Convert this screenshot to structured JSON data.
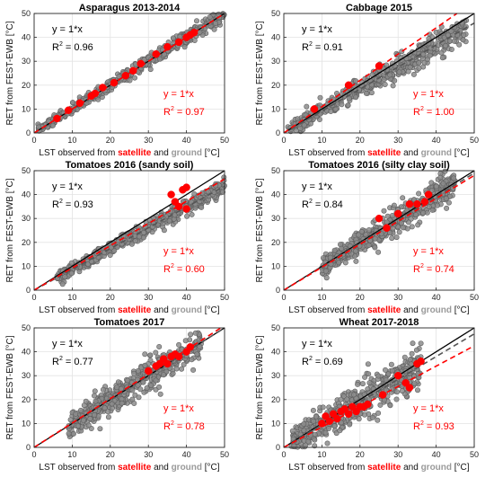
{
  "figure": {
    "ylabel": "RET from FEST-EWB [°C]",
    "xlabel_parts": {
      "prefix": "LST observed from ",
      "satellite": "satellite",
      "and": " and ",
      "ground": "ground",
      "suffix": " [°C]"
    },
    "ticks": [
      "0",
      "10",
      "20",
      "30",
      "40",
      "50"
    ],
    "colors": {
      "satellite": "#ff0000",
      "ground": "#9a9a9a",
      "ground_fill": "#8c8c8c",
      "ground_edge": "#5e5e5e",
      "identity_line": "#000000",
      "ground_fit": "#555555",
      "satellite_fit": "#ff0000"
    }
  },
  "chart_data": [
    {
      "type": "scatter",
      "title": "Asparagus 2013-2014",
      "xlim": [
        0,
        50
      ],
      "ylim": [
        0,
        50
      ],
      "grid": true,
      "ground": {
        "slope_line": "y = 1*x",
        "r2_label": "R",
        "r2_value": "= 0.96",
        "fit_slope": 1.0,
        "range": [
          1,
          50
        ],
        "spread": 1.6
      },
      "satellite": {
        "slope_line": "y = 1*x",
        "r2_label": "R",
        "r2_value": "= 0.97",
        "fit_slope": 1.0,
        "points": [
          [
            6,
            6
          ],
          [
            9,
            9.5
          ],
          [
            12,
            12.5
          ],
          [
            15,
            15.5
          ],
          [
            16,
            16.5
          ],
          [
            18,
            19
          ],
          [
            21,
            21
          ],
          [
            24,
            24
          ],
          [
            26,
            26
          ],
          [
            28,
            29
          ],
          [
            32,
            33
          ],
          [
            35,
            36
          ],
          [
            38,
            38
          ],
          [
            40,
            40
          ],
          [
            41,
            41
          ],
          [
            42,
            42
          ]
        ]
      }
    },
    {
      "type": "scatter",
      "title": "Cabbage 2015",
      "xlim": [
        0,
        50
      ],
      "ylim": [
        0,
        50
      ],
      "grid": true,
      "ground": {
        "slope_line": "y = 1*x",
        "r2_label": "R",
        "r2_value": "= 0.91",
        "fit_slope": 0.92,
        "range": [
          1,
          48
        ],
        "spread": 2.8
      },
      "satellite": {
        "slope_line": "y = 1*x",
        "r2_label": "R",
        "r2_value": "= 1.00",
        "fit_slope": 1.1,
        "points": [
          [
            8,
            10
          ],
          [
            17,
            20
          ],
          [
            25,
            28
          ]
        ]
      }
    },
    {
      "type": "scatter",
      "title": "Tomatoes 2016 (sandy soil)",
      "xlim": [
        0,
        50
      ],
      "ylim": [
        0,
        50
      ],
      "grid": true,
      "ground": {
        "slope_line": "y = 1*x",
        "r2_label": "R",
        "r2_value": "= 0.93",
        "fit_slope": 0.87,
        "range": [
          6,
          50
        ],
        "spread": 1.8
      },
      "satellite": {
        "slope_line": "y = 1*x",
        "r2_label": "R",
        "r2_value": "= 0.60",
        "fit_slope": 0.93,
        "points": [
          [
            36,
            40
          ],
          [
            37,
            37
          ],
          [
            38,
            35
          ],
          [
            39,
            42
          ],
          [
            40,
            43
          ],
          [
            40,
            34
          ]
        ]
      }
    },
    {
      "type": "scatter",
      "title": "Tomatoes 2016 (silty clay soil)",
      "xlim": [
        0,
        50
      ],
      "ylim": [
        0,
        50
      ],
      "grid": true,
      "ground": {
        "slope_line": "y = 1*x",
        "r2_label": "R",
        "r2_value": "= 0.84",
        "fit_slope": 0.98,
        "range": [
          10,
          45
        ],
        "spread": 3.5
      },
      "satellite": {
        "slope_line": "y = 1*x",
        "r2_label": "R",
        "r2_value": "= 0.74",
        "fit_slope": 0.96,
        "points": [
          [
            25,
            30
          ],
          [
            27,
            26
          ],
          [
            30,
            32
          ],
          [
            33,
            36
          ],
          [
            35,
            36
          ],
          [
            37,
            37
          ],
          [
            38,
            40
          ]
        ]
      }
    },
    {
      "type": "scatter",
      "title": "Tomatoes 2017",
      "xlim": [
        0,
        50
      ],
      "ylim": [
        0,
        50
      ],
      "grid": true,
      "ground": {
        "slope_line": "y = 1*x",
        "r2_label": "R",
        "r2_value": "= 0.77",
        "fit_slope": 1.0,
        "range": [
          9,
          44
        ],
        "spread": 3.8
      },
      "satellite": {
        "slope_line": "y = 1*x",
        "r2_label": "R",
        "r2_value": "= 0.78",
        "fit_slope": 1.02,
        "points": [
          [
            30,
            32
          ],
          [
            32,
            34
          ],
          [
            33,
            35
          ],
          [
            34,
            37
          ],
          [
            35,
            35
          ],
          [
            36,
            38
          ],
          [
            37,
            39
          ],
          [
            38,
            38
          ],
          [
            40,
            40
          ],
          [
            41,
            42
          ]
        ]
      }
    },
    {
      "type": "scatter",
      "title": "Wheat 2017-2018",
      "xlim": [
        0,
        50
      ],
      "ylim": [
        0,
        50
      ],
      "grid": true,
      "ground": {
        "slope_line": "y = 1*x",
        "r2_label": "R",
        "r2_value": "= 0.69",
        "fit_slope": 0.95,
        "range": [
          2,
          36
        ],
        "spread": 5.0
      },
      "satellite": {
        "slope_line": "y = 1*x",
        "r2_label": "R",
        "r2_value": "= 0.93",
        "fit_slope": 0.85,
        "points": [
          [
            10,
            10
          ],
          [
            11,
            13
          ],
          [
            12,
            11
          ],
          [
            13,
            14
          ],
          [
            14,
            12
          ],
          [
            15,
            15
          ],
          [
            16,
            16
          ],
          [
            17,
            14
          ],
          [
            18,
            17
          ],
          [
            19,
            15
          ],
          [
            20,
            17
          ],
          [
            21,
            17
          ],
          [
            22,
            18
          ],
          [
            26,
            22
          ],
          [
            30,
            30
          ],
          [
            32,
            27
          ],
          [
            33,
            25
          ],
          [
            35,
            35
          ],
          [
            36,
            36
          ]
        ]
      }
    }
  ]
}
